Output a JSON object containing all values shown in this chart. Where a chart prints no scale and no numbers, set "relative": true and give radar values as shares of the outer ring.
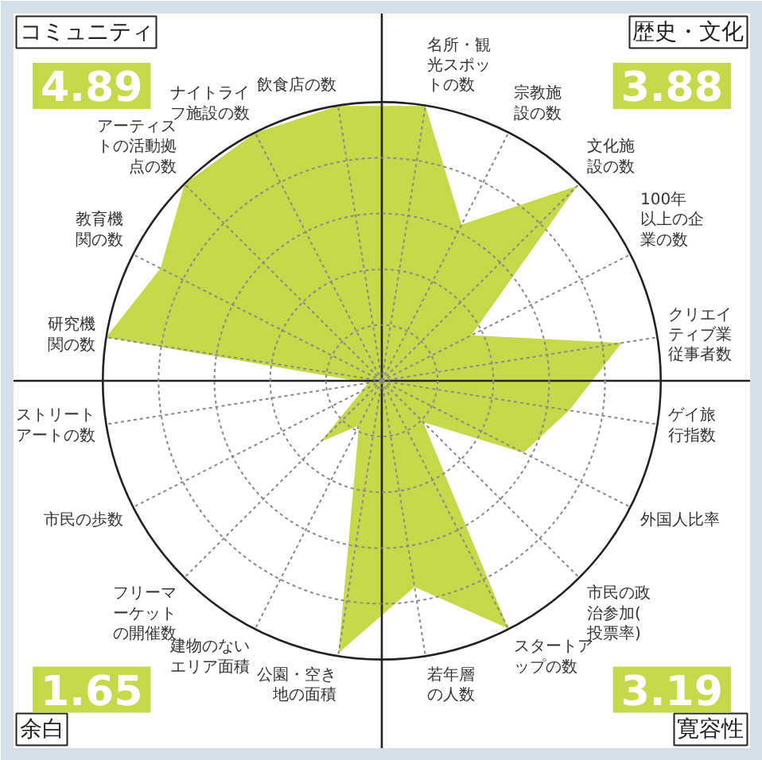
{
  "chart_data": {
    "type": "radar",
    "relative": true,
    "grid": true,
    "categories": [
      "名所・観光スポットの数",
      "宗教施設の数",
      "文化施設の数",
      "100年以上の企業の数",
      "クリエイティブ業従事者数",
      "ゲイ旅行指数",
      "外国人比率",
      "市民の政治参加(投票率)",
      "スタートアップの数",
      "若年層の人数",
      "公園・空き地の面積",
      "建物のないエリア面積",
      "フリーマーケットの開催数",
      "市民の歩数",
      "ストリートアートの数",
      "研究機関の数",
      "教育機関の数",
      "アーティストの活動拠点の数",
      "ナイトライフ施設の数",
      "飲食店の数"
    ],
    "series": [
      {
        "color": "#c5d94a",
        "values": [
          1.0,
          0.63,
          0.99,
          0.36,
          0.87,
          0.68,
          0.57,
          0.21,
          1.0,
          0.75,
          0.99,
          0.18,
          0.31,
          0.08,
          0.05,
          1.0,
          0.89,
          1.0,
          1.0,
          1.0
        ]
      }
    ],
    "annotations": [
      "コミュニティ",
      "4.89",
      "歴史・文化",
      "3.88",
      "余白",
      "1.65",
      "寛容性",
      "3.19"
    ]
  }
}
